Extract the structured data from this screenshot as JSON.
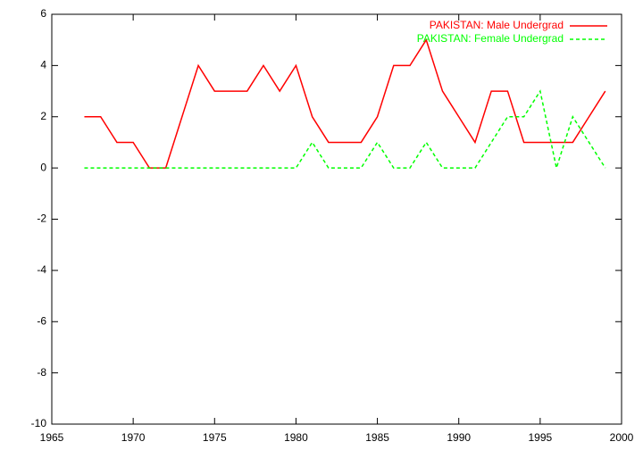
{
  "chart_data": {
    "type": "line",
    "x": [
      1967,
      1968,
      1969,
      1970,
      1971,
      1972,
      1973,
      1974,
      1975,
      1976,
      1977,
      1978,
      1979,
      1980,
      1981,
      1982,
      1983,
      1984,
      1985,
      1986,
      1987,
      1988,
      1989,
      1990,
      1991,
      1992,
      1993,
      1994,
      1995,
      1996,
      1997,
      1998,
      1999
    ],
    "series": [
      {
        "name": "PAKISTAN: Male Undergrad",
        "color": "#ff0000",
        "dash": "none",
        "values": [
          2,
          2,
          1,
          1,
          0,
          0,
          2,
          4,
          3,
          3,
          3,
          4,
          3,
          4,
          2,
          1,
          1,
          1,
          2,
          4,
          4,
          5,
          3,
          2,
          1,
          3,
          3,
          1,
          1,
          1,
          1,
          2,
          3
        ]
      },
      {
        "name": "PAKISTAN: Female Undergrad",
        "color": "#00ff00",
        "dash": "4,3",
        "values": [
          0,
          0,
          0,
          0,
          0,
          0,
          0,
          0,
          0,
          0,
          0,
          0,
          0,
          0,
          1,
          0,
          0,
          0,
          1,
          0,
          0,
          1,
          0,
          0,
          0,
          1,
          2,
          2,
          3,
          0,
          2,
          1,
          0
        ]
      }
    ],
    "xlim": [
      1965,
      2000
    ],
    "xticks": [
      1965,
      1970,
      1975,
      1980,
      1985,
      1990,
      1995,
      2000
    ],
    "ylim": [
      -10,
      6
    ],
    "yticks": [
      -10,
      -8,
      -6,
      -4,
      -2,
      0,
      2,
      4,
      6
    ],
    "legend": "top-right"
  }
}
